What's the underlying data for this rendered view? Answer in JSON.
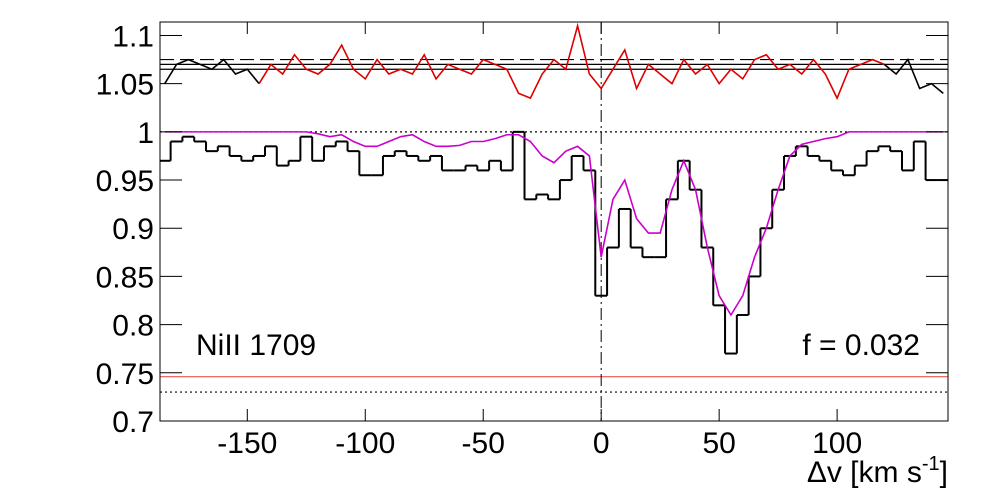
{
  "chart_data": {
    "type": "spectrum",
    "x": [
      -185,
      -180,
      -175,
      -170,
      -165,
      -160,
      -155,
      -150,
      -145,
      -140,
      -135,
      -130,
      -125,
      -120,
      -115,
      -110,
      -105,
      -100,
      -95,
      -90,
      -85,
      -80,
      -75,
      -70,
      -65,
      -60,
      -55,
      -50,
      -45,
      -40,
      -35,
      -30,
      -25,
      -20,
      -15,
      -10,
      -5,
      0,
      5,
      10,
      15,
      20,
      25,
      30,
      35,
      40,
      45,
      50,
      55,
      60,
      65,
      70,
      75,
      80,
      85,
      90,
      95,
      100,
      105,
      110,
      115,
      120,
      125,
      130,
      135,
      140,
      145
    ],
    "series": [
      {
        "name": "flux",
        "color": "#000000",
        "style": "step",
        "values": [
          0.97,
          0.99,
          0.995,
          0.99,
          0.98,
          0.985,
          0.975,
          0.97,
          0.975,
          0.985,
          0.965,
          0.97,
          0.995,
          0.97,
          0.985,
          0.99,
          0.98,
          0.955,
          0.955,
          0.975,
          0.98,
          0.975,
          0.97,
          0.975,
          0.96,
          0.96,
          0.965,
          0.96,
          0.97,
          0.96,
          1.0,
          0.93,
          0.935,
          0.93,
          0.95,
          0.975,
          0.96,
          0.83,
          0.88,
          0.92,
          0.88,
          0.87,
          0.87,
          0.93,
          0.97,
          0.94,
          0.88,
          0.82,
          0.77,
          0.81,
          0.85,
          0.9,
          0.94,
          0.975,
          0.985,
          0.975,
          0.97,
          0.96,
          0.955,
          0.965,
          0.98,
          0.985,
          0.98,
          0.96,
          0.99,
          0.95,
          0.95
        ]
      },
      {
        "name": "model",
        "color": "#cc00cc",
        "style": "line",
        "values": [
          1.0,
          1.0,
          1.0,
          1.0,
          1.0,
          1.0,
          1.0,
          1.0,
          1.0,
          1.0,
          1.0,
          1.0,
          1.0,
          0.998,
          0.995,
          0.997,
          0.99,
          0.985,
          0.985,
          0.99,
          0.995,
          0.997,
          0.99,
          0.985,
          0.985,
          0.986,
          0.99,
          0.99,
          0.993,
          0.997,
          0.997,
          0.99,
          0.975,
          0.968,
          0.98,
          0.985,
          0.975,
          0.87,
          0.93,
          0.95,
          0.91,
          0.895,
          0.895,
          0.94,
          0.97,
          0.94,
          0.88,
          0.83,
          0.81,
          0.83,
          0.87,
          0.9,
          0.94,
          0.975,
          0.987,
          0.99,
          0.993,
          0.995,
          1.0,
          1.0,
          1.0,
          1.0,
          1.0,
          1.0,
          1.0,
          1.0,
          1.0
        ]
      },
      {
        "name": "residual outside fit",
        "color": "#000000",
        "style": "line",
        "values": [
          1.05,
          1.07,
          1.075,
          1.07,
          1.065,
          1.075,
          1.06,
          1.065,
          1.05,
          null,
          null,
          null,
          null,
          null,
          null,
          null,
          null,
          null,
          null,
          null,
          null,
          null,
          null,
          null,
          null,
          null,
          null,
          null,
          null,
          null,
          null,
          null,
          null,
          null,
          null,
          null,
          null,
          null,
          null,
          null,
          null,
          null,
          null,
          null,
          null,
          null,
          null,
          null,
          null,
          null,
          null,
          null,
          null,
          null,
          null,
          null,
          null,
          null,
          null,
          null,
          null,
          1.07,
          1.06,
          1.075,
          1.045,
          1.05,
          1.04
        ]
      },
      {
        "name": "residual in fit",
        "color": "#dd0000",
        "style": "line",
        "values": [
          null,
          null,
          null,
          null,
          null,
          null,
          null,
          null,
          1.05,
          1.07,
          1.06,
          1.08,
          1.065,
          1.06,
          1.07,
          1.09,
          1.065,
          1.055,
          1.075,
          1.06,
          1.065,
          1.06,
          1.08,
          1.055,
          1.07,
          1.065,
          1.06,
          1.075,
          1.07,
          1.065,
          1.04,
          1.035,
          1.06,
          1.075,
          1.065,
          1.11,
          1.06,
          1.045,
          1.065,
          1.085,
          1.045,
          1.07,
          1.06,
          1.05,
          1.075,
          1.06,
          1.07,
          1.05,
          1.065,
          1.055,
          1.075,
          1.08,
          1.065,
          1.07,
          1.06,
          1.075,
          1.06,
          1.035,
          1.065,
          1.07,
          1.075,
          1.07,
          null,
          null,
          null,
          null,
          null
        ]
      }
    ],
    "hlines": [
      {
        "y": 1.075,
        "color": "#000000",
        "style": "dashed"
      },
      {
        "y": 1.07,
        "color": "#000000",
        "style": "solid"
      },
      {
        "y": 1.065,
        "color": "#000000",
        "style": "solid"
      },
      {
        "y": 1.0,
        "color": "#000000",
        "style": "dotted"
      },
      {
        "y": 0.746,
        "color": "#ee5555",
        "style": "solid"
      },
      {
        "y": 0.73,
        "color": "#000000",
        "style": "dotted"
      }
    ],
    "vlines": [
      {
        "x": 0,
        "color": "#000000",
        "style": "dashdot"
      }
    ],
    "xlim": [
      -187,
      147
    ],
    "ylim": [
      0.7,
      1.114
    ],
    "xticks": [
      -150,
      -100,
      -50,
      0,
      50,
      100
    ],
    "yticks": [
      0.7,
      0.75,
      0.8,
      0.85,
      0.9,
      0.95,
      1,
      1.05,
      1.1
    ],
    "bin_width": 5,
    "xlabel": "Δv [km s",
    "xlabel_sup": "-1",
    "xlabel_end": "]",
    "annotations": [
      "NiII 1709",
      "f = 0.032"
    ]
  }
}
